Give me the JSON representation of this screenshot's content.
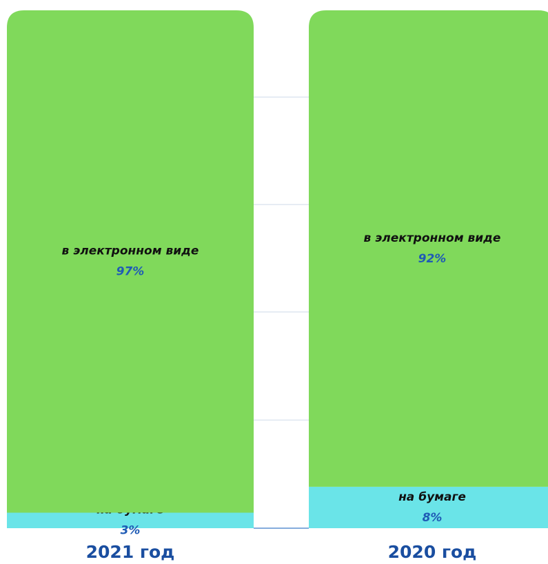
{
  "chart_data": {
    "type": "stacked_bar",
    "categories": [
      "2021 год",
      "2020 год"
    ],
    "series": [
      {
        "name": "на бумаге",
        "color": "#6ae4e8",
        "values": [
          3,
          8
        ],
        "value_labels": [
          "3%",
          "8%"
        ]
      },
      {
        "name": "в электронном виде",
        "color": "#80d95b",
        "values": [
          97,
          92
        ],
        "value_labels": [
          "97%",
          "92%"
        ]
      }
    ],
    "ylim": [
      0,
      100
    ]
  }
}
